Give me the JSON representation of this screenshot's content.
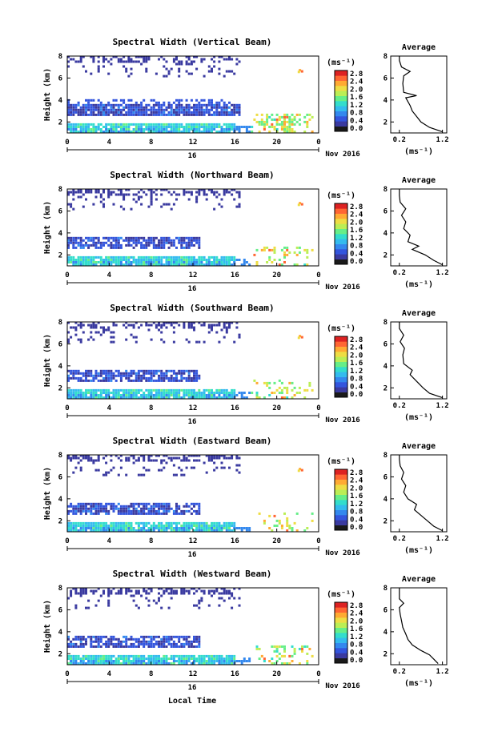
{
  "colorscale": [
    "#1a1a1a",
    "#3a3aa0",
    "#3355dd",
    "#3388ee",
    "#33bbee",
    "#33ddcc",
    "#66ee88",
    "#bbee55",
    "#eedd44",
    "#ffaa33",
    "#ff6633",
    "#dd2222"
  ],
  "chart_data": [
    {
      "type": "heatmap",
      "title": "Spectral Width (Vertical Beam)",
      "ylabel": "Height (km)",
      "x_ticks": [
        "0",
        "4",
        "8",
        "12",
        "16",
        "20",
        "0"
      ],
      "y_ticks": [
        "2",
        "4",
        "6",
        "8"
      ],
      "xlim": [
        0,
        24
      ],
      "ylim": [
        1,
        8
      ],
      "date_marker": "16",
      "date_label": "Nov 2016",
      "colorbar_unit": "(ms⁻¹)",
      "colorbar_ticks": [
        "2.8",
        "2.4",
        "2.0",
        "1.6",
        "1.2",
        "0.8",
        "0.4",
        "0.0"
      ],
      "profile_title": "Average",
      "profile_xlabel": "(ms⁻¹)",
      "profile_x_ticks": [
        "0.2",
        "1.2"
      ],
      "profile_y_ticks": [
        "2",
        "4",
        "6",
        "8"
      ],
      "profile": [
        [
          1.2,
          1.1
        ],
        [
          0.9,
          1.5
        ],
        [
          0.7,
          2.0
        ],
        [
          0.6,
          2.5
        ],
        [
          0.5,
          3.0
        ],
        [
          0.45,
          3.5
        ],
        [
          0.35,
          4.2
        ],
        [
          0.6,
          4.4
        ],
        [
          0.3,
          4.7
        ],
        [
          0.28,
          5.5
        ],
        [
          0.3,
          6.2
        ],
        [
          0.45,
          6.6
        ],
        [
          0.25,
          7.0
        ],
        [
          0.2,
          7.6
        ],
        [
          0.2,
          8.0
        ]
      ]
    },
    {
      "type": "heatmap",
      "title": "Spectral Width (Northward Beam)",
      "ylabel": "Height (km)",
      "x_ticks": [
        "0",
        "4",
        "8",
        "12",
        "16",
        "20",
        "0"
      ],
      "y_ticks": [
        "2",
        "4",
        "6",
        "8"
      ],
      "xlim": [
        0,
        24
      ],
      "ylim": [
        1,
        8
      ],
      "date_marker": "16",
      "date_label": "Nov 2016",
      "colorbar_unit": "(ms⁻¹)",
      "colorbar_ticks": [
        "2.8",
        "2.4",
        "2.0",
        "1.6",
        "1.2",
        "0.8",
        "0.4",
        "0.0"
      ],
      "profile_title": "Average",
      "profile_xlabel": "(ms⁻¹)",
      "profile_x_ticks": [
        "0.2",
        "1.2"
      ],
      "profile_y_ticks": [
        "2",
        "4",
        "6",
        "8"
      ],
      "profile": [
        [
          1.2,
          1.1
        ],
        [
          1.0,
          1.5
        ],
        [
          0.8,
          2.0
        ],
        [
          0.5,
          2.5
        ],
        [
          0.65,
          2.8
        ],
        [
          0.4,
          3.2
        ],
        [
          0.45,
          3.8
        ],
        [
          0.3,
          4.4
        ],
        [
          0.35,
          5.0
        ],
        [
          0.25,
          5.6
        ],
        [
          0.35,
          6.2
        ],
        [
          0.22,
          6.8
        ],
        [
          0.2,
          7.4
        ],
        [
          0.2,
          8.0
        ]
      ]
    },
    {
      "type": "heatmap",
      "title": "Spectral Width (Southward Beam)",
      "ylabel": "Height (km)",
      "x_ticks": [
        "0",
        "4",
        "8",
        "12",
        "16",
        "20",
        "0"
      ],
      "y_ticks": [
        "2",
        "4",
        "6",
        "8"
      ],
      "xlim": [
        0,
        24
      ],
      "ylim": [
        1,
        8
      ],
      "date_marker": "16",
      "date_label": "Nov 2016",
      "colorbar_unit": "(ms⁻¹)",
      "colorbar_ticks": [
        "2.8",
        "2.4",
        "2.0",
        "1.6",
        "1.2",
        "0.8",
        "0.4",
        "0.0"
      ],
      "profile_title": "Average",
      "profile_xlabel": "(ms⁻¹)",
      "profile_x_ticks": [
        "0.2",
        "1.2"
      ],
      "profile_y_ticks": [
        "2",
        "4",
        "6",
        "8"
      ],
      "profile": [
        [
          1.2,
          1.1
        ],
        [
          0.9,
          1.5
        ],
        [
          0.75,
          2.0
        ],
        [
          0.6,
          2.6
        ],
        [
          0.45,
          3.2
        ],
        [
          0.5,
          3.6
        ],
        [
          0.3,
          4.2
        ],
        [
          0.28,
          5.0
        ],
        [
          0.32,
          5.6
        ],
        [
          0.22,
          6.2
        ],
        [
          0.3,
          6.8
        ],
        [
          0.2,
          7.4
        ],
        [
          0.2,
          8.0
        ]
      ]
    },
    {
      "type": "heatmap",
      "title": "Spectral Width (Eastward Beam)",
      "ylabel": "Height (km)",
      "x_ticks": [
        "0",
        "4",
        "8",
        "12",
        "16",
        "20",
        "0"
      ],
      "y_ticks": [
        "2",
        "4",
        "6",
        "8"
      ],
      "xlim": [
        0,
        24
      ],
      "ylim": [
        1,
        8
      ],
      "date_marker": "16",
      "date_label": "Nov 2016",
      "colorbar_unit": "(ms⁻¹)",
      "colorbar_ticks": [
        "2.8",
        "2.4",
        "2.0",
        "1.6",
        "1.2",
        "0.8",
        "0.4",
        "0.0"
      ],
      "profile_title": "Average",
      "profile_xlabel": "(ms⁻¹)",
      "profile_x_ticks": [
        "0.2",
        "1.2"
      ],
      "profile_y_ticks": [
        "2",
        "4",
        "6",
        "8"
      ],
      "profile": [
        [
          1.2,
          1.1
        ],
        [
          1.0,
          1.5
        ],
        [
          0.85,
          2.0
        ],
        [
          0.7,
          2.5
        ],
        [
          0.55,
          3.0
        ],
        [
          0.6,
          3.5
        ],
        [
          0.4,
          4.0
        ],
        [
          0.3,
          4.6
        ],
        [
          0.35,
          5.2
        ],
        [
          0.25,
          5.8
        ],
        [
          0.3,
          6.4
        ],
        [
          0.22,
          7.0
        ],
        [
          0.2,
          7.6
        ],
        [
          0.2,
          8.0
        ]
      ]
    },
    {
      "type": "heatmap",
      "title": "Spectral Width (Westward Beam)",
      "ylabel": "Height (km)",
      "x_ticks": [
        "0",
        "4",
        "8",
        "12",
        "16",
        "20",
        "0"
      ],
      "y_ticks": [
        "2",
        "4",
        "6",
        "8"
      ],
      "xlim": [
        0,
        24
      ],
      "ylim": [
        1,
        8
      ],
      "date_marker": "16",
      "date_label": "Nov 2016",
      "colorbar_unit": "(ms⁻¹)",
      "colorbar_ticks": [
        "2.8",
        "2.4",
        "2.0",
        "1.6",
        "1.2",
        "0.8",
        "0.4",
        "0.0"
      ],
      "profile_title": "Average",
      "profile_xlabel": "(ms⁻¹)",
      "profile_x_ticks": [
        "0.2",
        "1.2"
      ],
      "profile_y_ticks": [
        "2",
        "4",
        "6",
        "8"
      ],
      "profile": [
        [
          1.1,
          1.1
        ],
        [
          1.0,
          1.5
        ],
        [
          0.9,
          1.9
        ],
        [
          0.7,
          2.3
        ],
        [
          0.5,
          2.8
        ],
        [
          0.4,
          3.3
        ],
        [
          0.35,
          3.8
        ],
        [
          0.28,
          4.4
        ],
        [
          0.25,
          5.0
        ],
        [
          0.22,
          5.6
        ],
        [
          0.2,
          6.2
        ],
        [
          0.3,
          6.6
        ],
        [
          0.2,
          7.0
        ],
        [
          0.2,
          8.0
        ]
      ]
    }
  ],
  "footer": {
    "xlabel": "Local Time"
  }
}
